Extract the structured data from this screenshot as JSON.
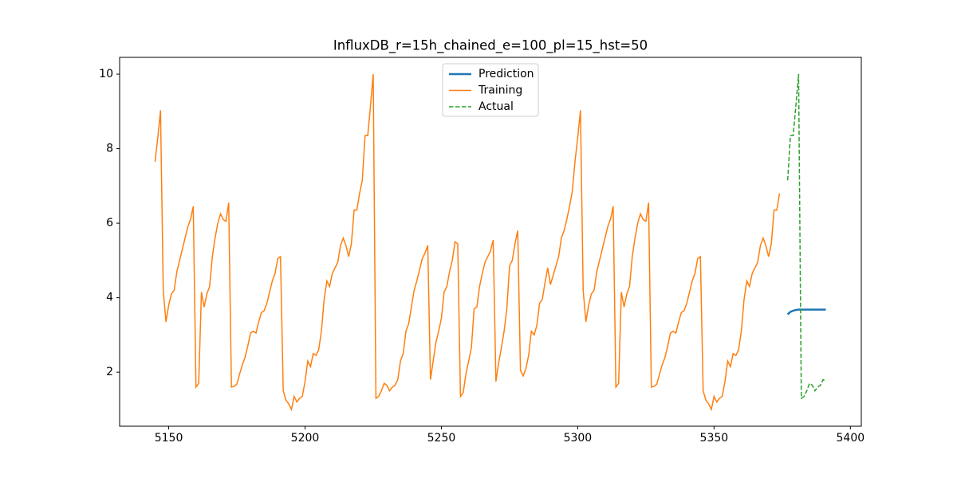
{
  "chart_data": {
    "type": "line",
    "title": "InfluxDB_r=15h_chained_e=100_pl=15_hst=50",
    "xlim": [
      5132,
      5404
    ],
    "ylim": [
      0.55,
      10.45
    ],
    "xticks": [
      5150,
      5200,
      5250,
      5300,
      5350,
      5400
    ],
    "yticks": [
      2,
      4,
      6,
      8,
      10
    ],
    "legend": "upper center",
    "series": [
      {
        "name": "Prediction",
        "color": "#1f77b4",
        "dash": "solid",
        "width": 2.5,
        "x": [
          5377,
          5378,
          5379,
          5380,
          5381,
          5382,
          5383,
          5384,
          5385,
          5386,
          5387,
          5388,
          5389,
          5390,
          5391
        ],
        "values": [
          3.55,
          3.62,
          3.65,
          3.67,
          3.68,
          3.68,
          3.68,
          3.68,
          3.68,
          3.68,
          3.68,
          3.68,
          3.68,
          3.68,
          3.68
        ]
      },
      {
        "name": "Training",
        "color": "#ff7f0e",
        "dash": "solid",
        "width": 1.5,
        "x": [
          5145,
          5146,
          5147,
          5148,
          5149,
          5150,
          5151,
          5152,
          5153,
          5154,
          5155,
          5156,
          5157,
          5158,
          5159,
          5160,
          5161,
          5162,
          5163,
          5164,
          5165,
          5166,
          5167,
          5168,
          5169,
          5170,
          5171,
          5172,
          5173,
          5174,
          5175,
          5176,
          5177,
          5178,
          5179,
          5180,
          5181,
          5182,
          5183,
          5184,
          5185,
          5186,
          5187,
          5188,
          5189,
          5190,
          5191,
          5192,
          5193,
          5194,
          5195,
          5196,
          5197,
          5198,
          5199,
          5200,
          5201,
          5202,
          5203,
          5204,
          5205,
          5206,
          5207,
          5208,
          5209,
          5210,
          5211,
          5212,
          5213,
          5214,
          5215,
          5216,
          5217,
          5218,
          5219,
          5220,
          5221,
          5222,
          5223,
          5224,
          5225,
          5226,
          5227,
          5228,
          5229,
          5230,
          5231,
          5232,
          5233,
          5234,
          5235,
          5236,
          5237,
          5238,
          5239,
          5240,
          5241,
          5242,
          5243,
          5244,
          5245,
          5246,
          5247,
          5248,
          5249,
          5250,
          5251,
          5252,
          5253,
          5254,
          5255,
          5256,
          5257,
          5258,
          5259,
          5260,
          5261,
          5262,
          5263,
          5264,
          5265,
          5266,
          5267,
          5268,
          5269,
          5270,
          5271,
          5272,
          5273,
          5274,
          5275,
          5276,
          5277,
          5278,
          5279,
          5280,
          5281,
          5282,
          5283,
          5284,
          5285,
          5286,
          5287,
          5288,
          5289,
          5290,
          5291,
          5292,
          5293,
          5294,
          5295,
          5296,
          5297,
          5298,
          5299,
          5300,
          5301,
          5302,
          5303,
          5304,
          5305,
          5306,
          5307,
          5308,
          5309,
          5310,
          5311,
          5312,
          5313,
          5314,
          5315,
          5316,
          5317,
          5318,
          5319,
          5320,
          5321,
          5322,
          5323,
          5324,
          5325,
          5326,
          5327,
          5328,
          5329,
          5330,
          5331,
          5332,
          5333,
          5334,
          5335,
          5336,
          5337,
          5338,
          5339,
          5340,
          5341,
          5342,
          5343,
          5344,
          5345,
          5346,
          5347,
          5348,
          5349,
          5350,
          5351,
          5352,
          5353,
          5354,
          5355,
          5356,
          5357,
          5358,
          5359,
          5360,
          5361,
          5362,
          5363,
          5364,
          5365,
          5366,
          5367,
          5368,
          5369,
          5370,
          5371,
          5372,
          5373,
          5374
        ],
        "values": [
          7.65,
          8.3,
          9.03,
          4.2,
          3.35,
          3.8,
          4.1,
          4.2,
          4.7,
          5.0,
          5.3,
          5.6,
          5.9,
          6.1,
          6.45,
          1.6,
          1.7,
          4.15,
          3.75,
          4.1,
          4.3,
          5.1,
          5.6,
          6.0,
          6.25,
          6.1,
          6.05,
          6.55,
          1.6,
          1.62,
          1.68,
          1.95,
          2.2,
          2.4,
          2.7,
          3.05,
          3.1,
          3.05,
          3.35,
          3.6,
          3.65,
          3.85,
          4.15,
          4.45,
          4.65,
          5.05,
          5.1,
          1.5,
          1.25,
          1.15,
          1.0,
          1.35,
          1.2,
          1.3,
          1.35,
          1.75,
          2.3,
          2.15,
          2.5,
          2.45,
          2.6,
          3.1,
          3.95,
          4.45,
          4.3,
          4.65,
          4.8,
          4.95,
          5.4,
          5.6,
          5.4,
          5.1,
          5.45,
          6.35,
          6.35,
          6.8,
          7.15,
          8.35,
          8.35,
          9.15,
          10.0,
          1.3,
          1.35,
          1.5,
          1.7,
          1.65,
          1.5,
          1.6,
          1.65,
          1.8,
          2.3,
          2.5,
          3.1,
          3.3,
          3.75,
          4.2,
          4.45,
          4.75,
          5.05,
          5.2,
          5.4,
          1.8,
          2.3,
          2.8,
          3.1,
          3.45,
          4.15,
          4.3,
          4.7,
          5.0,
          5.5,
          5.45,
          1.35,
          1.45,
          1.95,
          2.3,
          2.65,
          3.7,
          3.75,
          4.3,
          4.65,
          4.95,
          5.1,
          5.25,
          5.55,
          1.75,
          2.25,
          2.65,
          3.1,
          3.7,
          4.85,
          5.0,
          5.45,
          5.8,
          2.05,
          1.9,
          2.1,
          2.45,
          3.1,
          3.0,
          3.25,
          3.85,
          3.95,
          4.4,
          4.8,
          4.35,
          4.6,
          4.85,
          5.1,
          5.6,
          5.8,
          6.1,
          6.45,
          6.85,
          7.65,
          8.3,
          9.03,
          4.2,
          3.35,
          3.8,
          4.1,
          4.2,
          4.7,
          5.0,
          5.3,
          5.6,
          5.9,
          6.1,
          6.45,
          1.6,
          1.7,
          4.15,
          3.75,
          4.1,
          4.3,
          5.1,
          5.6,
          6.0,
          6.25,
          6.1,
          6.05,
          6.55,
          1.6,
          1.62,
          1.68,
          1.95,
          2.2,
          2.4,
          2.7,
          3.05,
          3.1,
          3.05,
          3.35,
          3.6,
          3.65,
          3.85,
          4.15,
          4.45,
          4.65,
          5.05,
          5.1,
          1.5,
          1.25,
          1.15,
          1.0,
          1.35,
          1.2,
          1.3,
          1.35,
          1.75,
          2.3,
          2.15,
          2.5,
          2.45,
          2.6,
          3.1,
          3.95,
          4.45,
          4.3,
          4.65,
          4.8,
          4.95,
          5.4,
          5.6,
          5.4,
          5.1,
          5.45,
          6.35,
          6.35,
          6.8
        ]
      },
      {
        "name": "Actual",
        "color": "#2ca02c",
        "dash": "dashed",
        "width": 1.5,
        "x": [
          5377,
          5378,
          5379,
          5380,
          5381,
          5382,
          5383,
          5384,
          5385,
          5386,
          5387,
          5388,
          5389,
          5390,
          5391
        ],
        "values": [
          7.15,
          8.35,
          8.35,
          9.15,
          10.0,
          1.3,
          1.35,
          1.5,
          1.7,
          1.65,
          1.5,
          1.6,
          1.65,
          1.8,
          1.75
        ]
      }
    ]
  }
}
